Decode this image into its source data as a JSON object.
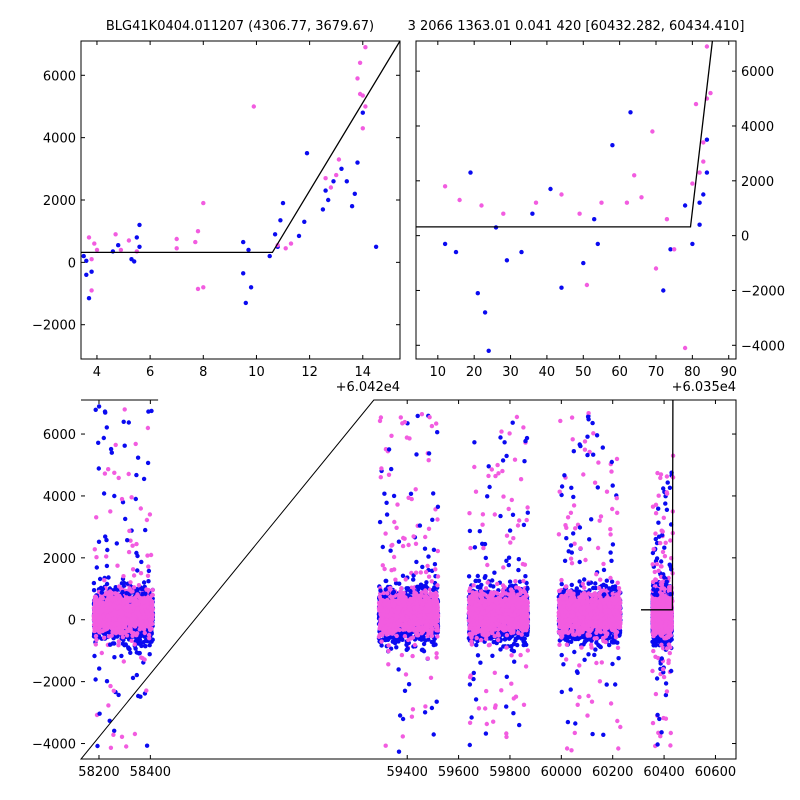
{
  "figure": {
    "title_left": "BLG41K0404.011207 (4306.77, 3679.67)",
    "title_right": "3 2066 1363.01 0.041 420 [60432.282, 60434.410]"
  },
  "colors": {
    "series_a": "#0a0af0",
    "series_b": "#f25ce0",
    "model": "#000000",
    "background": "#ffffff"
  },
  "chart_data": [
    {
      "id": "top-left",
      "type": "scatter",
      "title": "",
      "x_offset_label": "+6.042e4",
      "x_offset": 60420,
      "xlim": [
        3.4,
        15.4
      ],
      "ylim": [
        -3100,
        7100
      ],
      "x_ticks": [
        4,
        6,
        8,
        10,
        12,
        14
      ],
      "x_tick_labels": [
        "4",
        "6",
        "8",
        "10",
        "12",
        "14"
      ],
      "y_ticks": [
        -2000,
        0,
        2000,
        4000,
        6000
      ],
      "y_tick_labels": [
        "−2000",
        "0",
        "2000",
        "4000",
        "6000"
      ],
      "y_axis_side": "left",
      "series": [
        {
          "color_key": "series_a",
          "points": [
            [
              3.5,
              200
            ],
            [
              3.6,
              -400
            ],
            [
              3.7,
              -1150
            ],
            [
              3.6,
              50
            ],
            [
              3.8,
              -300
            ],
            [
              4.6,
              350
            ],
            [
              4.8,
              550
            ],
            [
              5.3,
              100
            ],
            [
              5.4,
              30
            ],
            [
              5.6,
              500
            ],
            [
              5.6,
              1200
            ],
            [
              5.5,
              800
            ],
            [
              9.5,
              650
            ],
            [
              9.5,
              -350
            ],
            [
              9.6,
              -1300
            ],
            [
              9.7,
              400
            ],
            [
              9.8,
              -800
            ],
            [
              10.5,
              200
            ],
            [
              10.7,
              900
            ],
            [
              10.8,
              500
            ],
            [
              10.9,
              1350
            ],
            [
              11.0,
              1900
            ],
            [
              11.6,
              850
            ],
            [
              11.8,
              1300
            ],
            [
              11.9,
              3500
            ],
            [
              12.5,
              1700
            ],
            [
              12.6,
              2300
            ],
            [
              12.7,
              2000
            ],
            [
              12.9,
              2600
            ],
            [
              13.2,
              3000
            ],
            [
              13.4,
              2600
            ],
            [
              13.6,
              1800
            ],
            [
              13.7,
              2200
            ],
            [
              13.8,
              3200
            ],
            [
              14.0,
              4800
            ],
            [
              14.5,
              500
            ]
          ]
        },
        {
          "color_key": "series_b",
          "points": [
            [
              3.7,
              800
            ],
            [
              3.9,
              600
            ],
            [
              4.0,
              400
            ],
            [
              3.8,
              100
            ],
            [
              3.8,
              -900
            ],
            [
              4.7,
              900
            ],
            [
              4.9,
              400
            ],
            [
              5.2,
              700
            ],
            [
              5.5,
              350
            ],
            [
              7.0,
              750
            ],
            [
              7.0,
              450
            ],
            [
              7.7,
              650
            ],
            [
              7.8,
              1000
            ],
            [
              7.8,
              -850
            ],
            [
              8.0,
              -800
            ],
            [
              8.0,
              1900
            ],
            [
              9.9,
              5000
            ],
            [
              10.8,
              550
            ],
            [
              11.1,
              450
            ],
            [
              11.3,
              600
            ],
            [
              12.6,
              2700
            ],
            [
              12.8,
              2400
            ],
            [
              13.0,
              2800
            ],
            [
              13.1,
              3300
            ],
            [
              13.8,
              5900
            ],
            [
              13.9,
              5400
            ],
            [
              14.0,
              4300
            ],
            [
              14.1,
              5000
            ],
            [
              14.0,
              5350
            ],
            [
              14.1,
              6900
            ],
            [
              13.9,
              6400
            ]
          ]
        }
      ],
      "model_line": [
        [
          3.4,
          320
        ],
        [
          10.6,
          320
        ],
        [
          15.4,
          7100
        ]
      ]
    },
    {
      "id": "top-right",
      "type": "scatter",
      "title": "",
      "x_offset_label": "+6.035e4",
      "x_offset": 60350,
      "xlim": [
        4,
        92
      ],
      "ylim": [
        -4500,
        7100
      ],
      "x_ticks": [
        10,
        20,
        30,
        40,
        50,
        60,
        70,
        80,
        90
      ],
      "x_tick_labels": [
        "10",
        "20",
        "30",
        "40",
        "50",
        "60",
        "70",
        "80",
        "90"
      ],
      "y_ticks": [
        -4000,
        -2000,
        0,
        2000,
        4000,
        6000
      ],
      "y_tick_labels": [
        "−4000",
        "−2000",
        "0",
        "2000",
        "4000",
        "6000"
      ],
      "y_axis_side": "right",
      "series": [
        {
          "color_key": "series_a",
          "points": [
            [
              12,
              -300
            ],
            [
              15,
              -600
            ],
            [
              19,
              2300
            ],
            [
              21,
              -2100
            ],
            [
              23,
              -2800
            ],
            [
              24,
              -4200
            ],
            [
              26,
              300
            ],
            [
              29,
              -900
            ],
            [
              33,
              -600
            ],
            [
              36,
              800
            ],
            [
              41,
              1700
            ],
            [
              44,
              -1900
            ],
            [
              50,
              -1000
            ],
            [
              53,
              600
            ],
            [
              54,
              -300
            ],
            [
              58,
              3300
            ],
            [
              63,
              4500
            ],
            [
              72,
              -2000
            ],
            [
              74,
              -500
            ],
            [
              78,
              1100
            ],
            [
              80,
              -300
            ],
            [
              82,
              400
            ],
            [
              82,
              1200
            ],
            [
              83,
              1500
            ],
            [
              84,
              3500
            ],
            [
              84,
              2300
            ]
          ]
        },
        {
          "color_key": "series_b",
          "points": [
            [
              12,
              1800
            ],
            [
              16,
              1300
            ],
            [
              22,
              1100
            ],
            [
              28,
              800
            ],
            [
              37,
              1200
            ],
            [
              44,
              1500
            ],
            [
              49,
              800
            ],
            [
              51,
              -1800
            ],
            [
              55,
              1200
            ],
            [
              62,
              1200
            ],
            [
              64,
              2200
            ],
            [
              66,
              1400
            ],
            [
              69,
              3800
            ],
            [
              70,
              -1200
            ],
            [
              73,
              600
            ],
            [
              75,
              -500
            ],
            [
              78,
              -4100
            ],
            [
              80,
              1900
            ],
            [
              82,
              2300
            ],
            [
              83,
              2700
            ],
            [
              83,
              3400
            ],
            [
              84,
              5000
            ],
            [
              84,
              6900
            ],
            [
              85,
              5200
            ],
            [
              81,
              4800
            ]
          ]
        }
      ],
      "model_line": [
        [
          4,
          320
        ],
        [
          79.5,
          320
        ],
        [
          85.5,
          7100
        ]
      ]
    },
    {
      "id": "bottom",
      "type": "scatter",
      "title": "",
      "xlim": [
        58130,
        60680
      ],
      "ylim": [
        -4500,
        7100
      ],
      "x_ticks": [
        58200,
        58400,
        59400,
        59600,
        59800,
        60000,
        60200,
        60400,
        60600
      ],
      "x_tick_labels": [
        "58200",
        "58400",
        "59400",
        "59600",
        "59800",
        "60000",
        "60200",
        "60400",
        "60600"
      ],
      "y_ticks": [
        -4000,
        -2000,
        0,
        2000,
        4000,
        6000
      ],
      "y_tick_labels": [
        "−4000",
        "−2000",
        "0",
        "2000",
        "4000",
        "6000"
      ],
      "y_axis_side": "left",
      "axis_break": [
        58430,
        59270
      ],
      "seasons": [
        {
          "start": 58180,
          "end": 58410,
          "spread": 1700,
          "outlier_high": 6900,
          "outlier_low": -4200
        },
        {
          "start": 59290,
          "end": 59520,
          "spread": 1800,
          "outlier_high": 6700,
          "outlier_low": -4300
        },
        {
          "start": 59640,
          "end": 59870,
          "spread": 1900,
          "outlier_high": 6600,
          "outlier_low": -4300
        },
        {
          "start": 59990,
          "end": 60230,
          "spread": 1900,
          "outlier_high": 6800,
          "outlier_low": -4400
        },
        {
          "start": 60355,
          "end": 60430,
          "spread": 1200,
          "outlier_high": 4800,
          "outlier_low": -4200
        }
      ],
      "rise_points": [
        [
          60432,
          600
        ],
        [
          60433,
          1500
        ],
        [
          60434,
          2800
        ],
        [
          60434,
          3500
        ],
        [
          60435,
          4600
        ],
        [
          60435,
          5300
        ]
      ],
      "model_line": [
        [
          60310,
          320
        ],
        [
          60432.3,
          320
        ],
        [
          60434.4,
          7100
        ]
      ]
    }
  ]
}
